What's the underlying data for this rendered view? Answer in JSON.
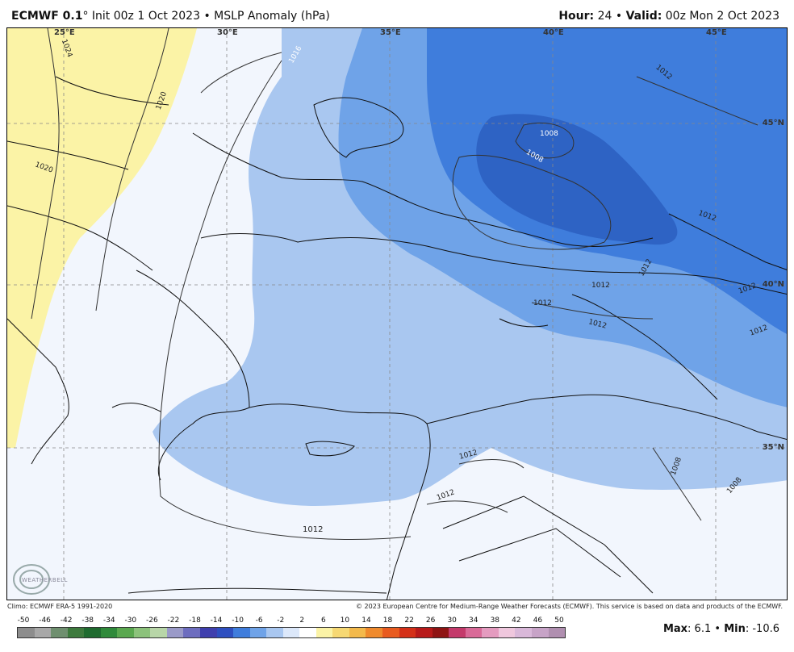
{
  "header": {
    "model": "ECMWF 0.1",
    "degree_symbol": "°",
    "init": "Init 00z 1 Oct 2023",
    "separator": "•",
    "field": "MSLP Anomaly (hPa)",
    "hour_label": "Hour:",
    "hour_value": "24",
    "valid_label": "Valid:",
    "valid_value": "00z Mon 2 Oct 2023"
  },
  "map": {
    "lon_labels": [
      "25°E",
      "30°E",
      "35°E",
      "40°E",
      "45°E"
    ],
    "lat_labels": [
      "45°N",
      "40°N",
      "35°N"
    ],
    "contour_labels": [
      "1024",
      "1020",
      "1020",
      "1016",
      "1012",
      "1008",
      "1008",
      "1012",
      "1012",
      "1012",
      "1012",
      "1012",
      "1012",
      "1012",
      "1012",
      "1012",
      "1008",
      "1008",
      "1012"
    ],
    "logo_text": "WEATHERBELL",
    "colors": {
      "positive_yellow": "#fbf3a6",
      "pale_blue": "#f2f6fd",
      "light_blue": "#a9c7f0",
      "mid_blue": "#6fa3e8",
      "deep_blue": "#3f7ddc",
      "deepest_blue": "#2e63c4"
    }
  },
  "footer": {
    "climo": "Climo: ECMWF ERA-5 1991-2020",
    "copyright": "© 2023 European Centre for Medium-Range Weather Forecasts (ECMWF). This service is based on data and products of the ECMWF.",
    "max_label": "Max",
    "max_value": ": 6.1",
    "min_label": "Min",
    "min_value": ": -10.6"
  },
  "colorbar": {
    "ticks": [
      "-50",
      "-46",
      "-42",
      "-38",
      "-34",
      "-30",
      "-26",
      "-22",
      "-18",
      "-14",
      "-10",
      "-6",
      "-2",
      "2",
      "6",
      "10",
      "14",
      "18",
      "22",
      "26",
      "30",
      "34",
      "38",
      "42",
      "46",
      "50"
    ],
    "colors": [
      "#8d8d8d",
      "#a8a8a8",
      "#6f8f6f",
      "#3d7a3d",
      "#1f6b2f",
      "#2f8a3a",
      "#5aa84f",
      "#8cc27b",
      "#b8d6a8",
      "#9a9ac8",
      "#6d6dbf",
      "#3f3fae",
      "#2e4fc0",
      "#3f7ddc",
      "#6fa3e8",
      "#a9c7f0",
      "#dce8fa",
      "#ffffff",
      "#fbf3a6",
      "#f6d873",
      "#f3b94b",
      "#ef8a2d",
      "#e85b1f",
      "#d43018",
      "#b81a1a",
      "#8f1414",
      "#c43a6b",
      "#d96a98",
      "#e49bbf",
      "#efc7dd",
      "#d9b8d9",
      "#c7a3c7",
      "#b08fb0"
    ]
  }
}
